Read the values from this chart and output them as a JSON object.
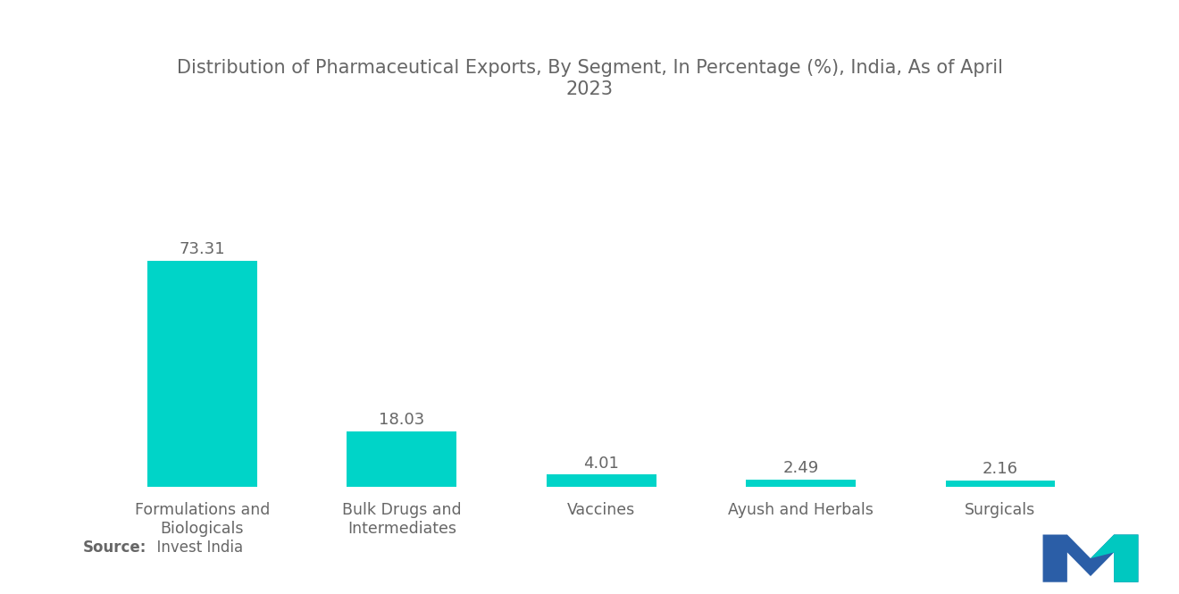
{
  "title": "Distribution of Pharmaceutical Exports, By Segment, In Percentage (%), India, As of April\n2023",
  "categories": [
    "Formulations and\nBiologicals",
    "Bulk Drugs and\nIntermediates",
    "Vaccines",
    "Ayush and Herbals",
    "Surgicals"
  ],
  "values": [
    73.31,
    18.03,
    4.01,
    2.49,
    2.16
  ],
  "bar_color": "#00D4C8",
  "background_color": "#ffffff",
  "title_color": "#666666",
  "label_color": "#666666",
  "source_label": "Source:",
  "source_value": "  Invest India",
  "ylim": [
    0,
    100
  ],
  "bar_width": 0.55,
  "title_fontsize": 15,
  "label_fontsize": 12.5,
  "value_fontsize": 13,
  "source_fontsize": 12
}
